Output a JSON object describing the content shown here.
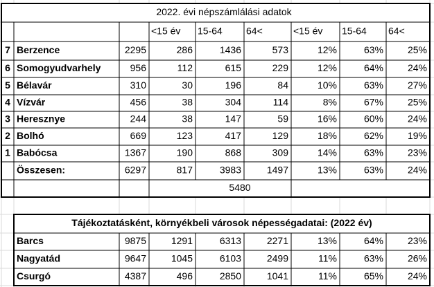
{
  "table": {
    "title": "2022. évi népszámlálási adatok",
    "headers": [
      "<15 év",
      "15-64",
      "64<",
      "<15 év",
      "15-64",
      "64<"
    ],
    "rows": [
      {
        "rank": "7",
        "name": "Berzence",
        "cells": [
          "2295",
          "286",
          "1436",
          "573",
          "12%",
          "63%",
          "25%"
        ]
      },
      {
        "rank": "6",
        "name": "Somogyudvarhely",
        "cells": [
          "956",
          "112",
          "615",
          "229",
          "12%",
          "64%",
          "24%"
        ]
      },
      {
        "rank": "5",
        "name": "Bélavár",
        "cells": [
          "310",
          "30",
          "196",
          "84",
          "10%",
          "63%",
          "27%"
        ]
      },
      {
        "rank": "4",
        "name": "Vízvár",
        "cells": [
          "456",
          "38",
          "304",
          "114",
          "8%",
          "67%",
          "25%"
        ]
      },
      {
        "rank": "3",
        "name": "Heresznye",
        "cells": [
          "244",
          "38",
          "147",
          "59",
          "16%",
          "60%",
          "24%"
        ]
      },
      {
        "rank": "2",
        "name": "Bolhó",
        "cells": [
          "669",
          "123",
          "417",
          "129",
          "18%",
          "62%",
          "19%"
        ]
      },
      {
        "rank": "1",
        "name": "Babócsa",
        "cells": [
          "1367",
          "190",
          "868",
          "309",
          "14%",
          "63%",
          "23%"
        ]
      }
    ],
    "total": {
      "label": "Összesen:",
      "cells": [
        "6297",
        "817",
        "3983",
        "1497",
        "13%",
        "63%",
        "24%"
      ]
    },
    "subtotal": "5480"
  },
  "reference": {
    "title": "Tájékoztatásként, környékbeli városok népességadatai: (2022 év)",
    "rows": [
      {
        "name": "Barcs",
        "cells": [
          "9875",
          "1291",
          "6313",
          "2271",
          "13%",
          "64%",
          "23%"
        ]
      },
      {
        "name": "Nagyatád",
        "cells": [
          "9647",
          "1045",
          "6103",
          "2499",
          "11%",
          "63%",
          "26%"
        ]
      },
      {
        "name": "Csurgó",
        "cells": [
          "4387",
          "496",
          "2850",
          "1041",
          "11%",
          "65%",
          "24%"
        ]
      }
    ]
  }
}
